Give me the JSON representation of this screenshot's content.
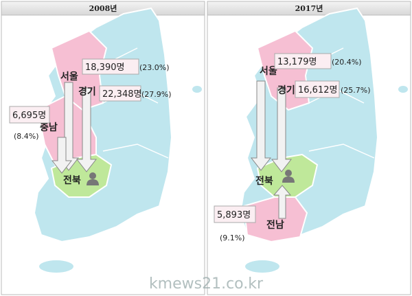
{
  "panels": [
    {
      "title": "2008년",
      "regions": [
        "서울",
        "경기",
        "충남",
        "전북"
      ],
      "flows": [
        {
          "count": "18,390명",
          "share": "(23.0%)"
        },
        {
          "count": "22,348명",
          "share": "(27.9%)"
        },
        {
          "count": "6,695명",
          "share": "(8.4%)"
        }
      ]
    },
    {
      "title": "2017년",
      "regions": [
        "서울",
        "경기",
        "전북",
        "전남"
      ],
      "flows": [
        {
          "count": "13,179명",
          "share": "(20.4%)"
        },
        {
          "count": "16,612명",
          "share": "(25.7%)"
        },
        {
          "count": "5,893명",
          "share": "(9.1%)"
        }
      ]
    }
  ],
  "watermark": "kmews21.co.kr"
}
